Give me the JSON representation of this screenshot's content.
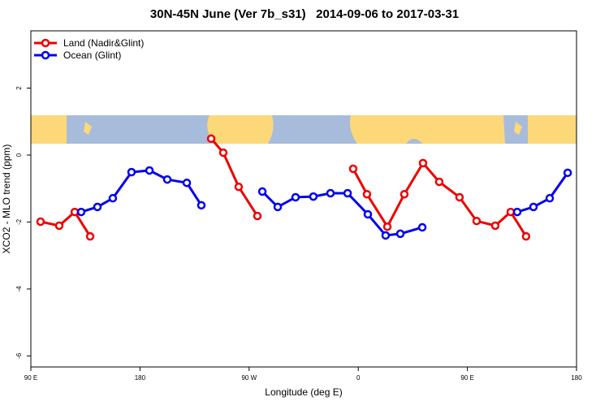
{
  "chart_data": {
    "type": "line",
    "title": "30N-45N June (Ver 7b_s31)   2014-09-06 to 2017-03-31",
    "xlabel": "Longitude (deg E)",
    "ylabel": "XCO2 - MLO trend (ppm)",
    "xlim": [
      90,
      540
    ],
    "ylim": [
      -6.33,
      3.71
    ],
    "xticks": [
      {
        "value": 90,
        "label": "90 E"
      },
      180,
      {
        "value": 270,
        "label": "90 W"
      },
      {
        "value": 360,
        "label": "0"
      },
      {
        "value": 450,
        "label": "90 E"
      },
      {
        "value": 540,
        "label": "180"
      }
    ],
    "yticks": [
      2,
      0,
      -2,
      -4,
      -6
    ],
    "legend": "top-left",
    "series": [
      {
        "name": "Land (Nadir&Glint)",
        "color": "#ee0000",
        "x": [
          98.0,
          113.4,
          126.2,
          138.9,
          null,
          238.7,
          248.7,
          261.4,
          276.8,
          null,
          355.8,
          367.2,
          384.0,
          398.0,
          413.4,
          426.8,
          443.5,
          457.6,
          473.0,
          485.7,
          498.4
        ],
        "values": [
          -1.99,
          -2.11,
          -1.7,
          -2.43,
          null,
          0.49,
          0.07,
          -0.95,
          -1.82,
          null,
          -0.41,
          -1.17,
          -2.14,
          -1.17,
          -0.24,
          -0.8,
          -1.26,
          -1.97,
          -2.11,
          -1.7,
          -2.43
        ]
      },
      {
        "name": "Ocean (Glint)",
        "color": "#0000ee",
        "x": [
          131.5,
          144.9,
          157.6,
          173.0,
          187.8,
          202.5,
          218.6,
          230.6,
          null,
          280.9,
          293.6,
          308.3,
          323.0,
          337.1,
          351.2,
          367.9,
          382.6,
          394.7,
          412.8,
          null,
          491.1,
          504.5,
          517.9,
          532.7
        ],
        "values": [
          -1.7,
          -1.55,
          -1.29,
          -0.51,
          -0.46,
          -0.73,
          -0.83,
          -1.5,
          null,
          -1.09,
          -1.55,
          -1.26,
          -1.24,
          -1.14,
          -1.14,
          -1.77,
          -2.4,
          -2.35,
          -2.16,
          null,
          -1.7,
          -1.55,
          -1.29,
          -0.53
        ]
      }
    ]
  }
}
